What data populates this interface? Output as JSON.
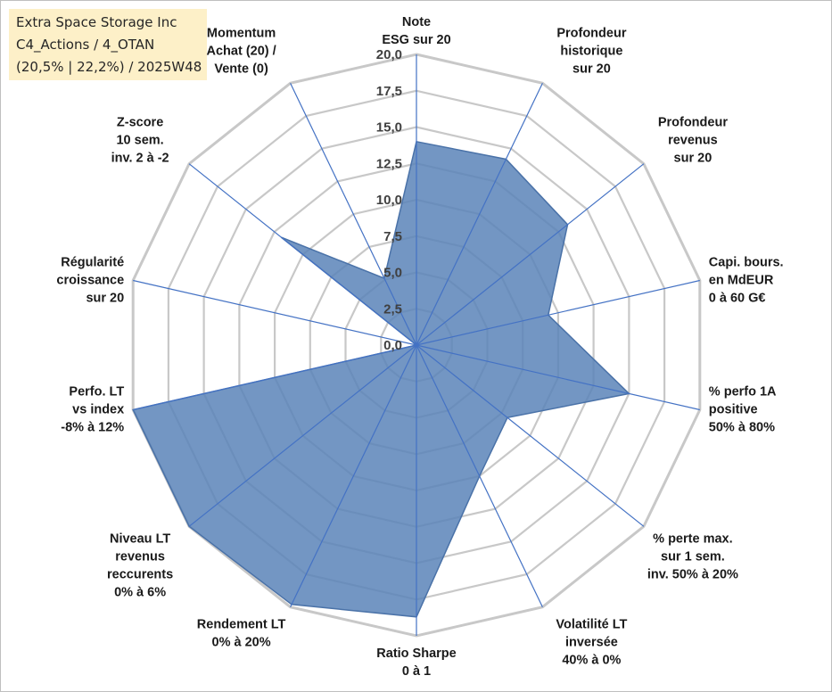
{
  "header": {
    "company": "Extra Space Storage Inc",
    "portfolio": "C4_Actions / 4_OTAN",
    "period": "(20,5% | 22,2%) / 2025W48"
  },
  "chart_data": {
    "type": "radar",
    "title": "Extra Space Storage Inc",
    "rmin": 0,
    "rmax": 20,
    "tick_step": 2.5,
    "ticks": [
      "0,0",
      "2,5",
      "5,0",
      "7,5",
      "10,0",
      "12,5",
      "15,0",
      "17,5",
      "20,0"
    ],
    "axes": [
      {
        "label": [
          "Note",
          "ESG sur 20"
        ],
        "value": 14.0
      },
      {
        "label": [
          "Profondeur",
          "historique",
          "sur 20"
        ],
        "value": 14.2
      },
      {
        "label": [
          "Profondeur",
          "revenus",
          "sur 20"
        ],
        "value": 13.3
      },
      {
        "label": [
          "Capi. bours.",
          "en MdEUR",
          "0 à 60 G€"
        ],
        "value": 9.3
      },
      {
        "label": [
          "% perfo 1A",
          "positive",
          "50% à 80%"
        ],
        "value": 15.0
      },
      {
        "label": [
          "% perte max.",
          "sur 1 sem.",
          "inv. 50% à 20%"
        ],
        "value": 8.0
      },
      {
        "label": [
          "Volatilité LT",
          "inversée",
          "40% à 0%"
        ],
        "value": 10.0
      },
      {
        "label": [
          "Ratio Sharpe",
          "0 à 1"
        ],
        "value": 18.7
      },
      {
        "label": [
          "Rendement LT",
          "0% à 20%"
        ],
        "value": 19.8
      },
      {
        "label": [
          "Niveau LT",
          "revenus",
          "reccurents",
          "0% à 6%"
        ],
        "value": 20.0
      },
      {
        "label": [
          "Perfo. LT",
          "vs index",
          "-8% à 12%"
        ],
        "value": 20.0
      },
      {
        "label": [
          "Régularité",
          "croissance",
          "sur 20"
        ],
        "value": 0.0
      },
      {
        "label": [
          "Z-score",
          "10 sem.",
          "inv. 2 à -2"
        ],
        "value": 11.9
      },
      {
        "label": [
          "Momentum",
          "Achat (20) /",
          "Vente (0)"
        ],
        "value": 5.1
      }
    ],
    "series": [
      {
        "name": "Extra Space Storage Inc",
        "color": "#5b84b8",
        "line_color": "#4a72a8"
      }
    ],
    "grid_color": "#c8c8c8",
    "axis_color": "#4472c4"
  }
}
